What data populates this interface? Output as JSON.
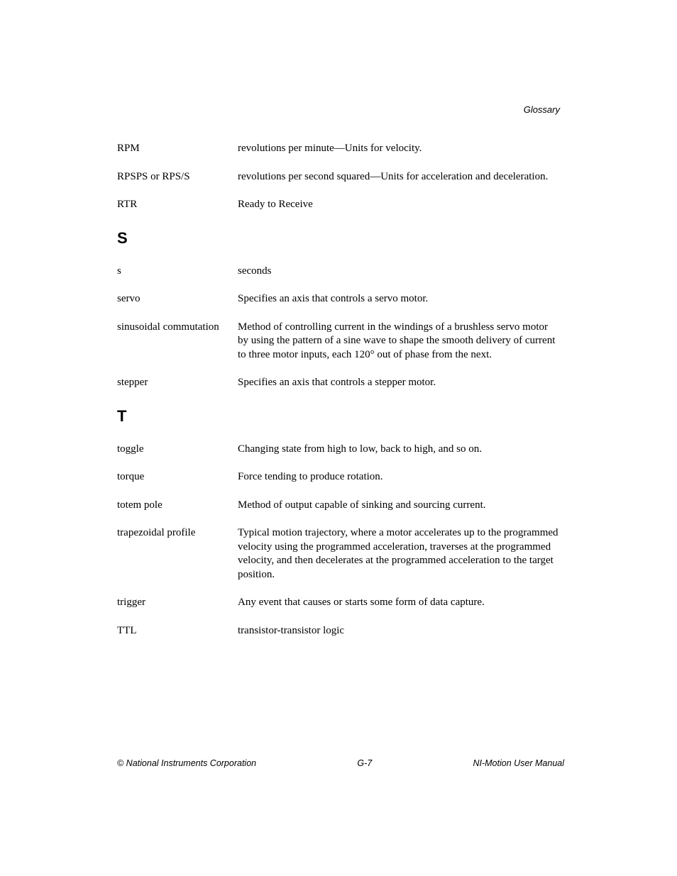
{
  "header": {
    "section_label": "Glossary"
  },
  "entries": {
    "pre_s": [
      {
        "term": "RPM",
        "definition": "revolutions per minute—Units for velocity."
      },
      {
        "term": "RPSPS or RPS/S",
        "definition": "revolutions per second squared—Units for acceleration and deceleration."
      },
      {
        "term": "RTR",
        "definition": "Ready to Receive"
      }
    ],
    "section_s_label": "S",
    "section_s": [
      {
        "term": "s",
        "definition": "seconds"
      },
      {
        "term": "servo",
        "definition": "Specifies an axis that controls a servo motor."
      },
      {
        "term": "sinusoidal commutation",
        "definition": "Method of controlling current in the windings of a brushless servo motor by using the pattern of a sine wave to shape the smooth delivery of current to three motor inputs, each 120° out of phase from the next."
      },
      {
        "term": "stepper",
        "definition": "Specifies an axis that controls a stepper motor."
      }
    ],
    "section_t_label": "T",
    "section_t": [
      {
        "term": "toggle",
        "definition": "Changing state from high to low, back to high, and so on."
      },
      {
        "term": "torque",
        "definition": "Force tending to produce rotation."
      },
      {
        "term": "totem pole",
        "definition": "Method of output capable of sinking and sourcing current."
      },
      {
        "term": "trapezoidal profile",
        "definition": "Typical motion trajectory, where a motor accelerates up to the programmed velocity using the programmed acceleration, traverses at the programmed velocity, and then decelerates at the programmed acceleration to the target position."
      },
      {
        "term": "trigger",
        "definition": "Any event that causes or starts some form of data capture."
      },
      {
        "term": "TTL",
        "definition": "transistor-transistor logic"
      }
    ]
  },
  "footer": {
    "left": "© National Instruments Corporation",
    "center": "G-7",
    "right": "NI-Motion User Manual"
  }
}
